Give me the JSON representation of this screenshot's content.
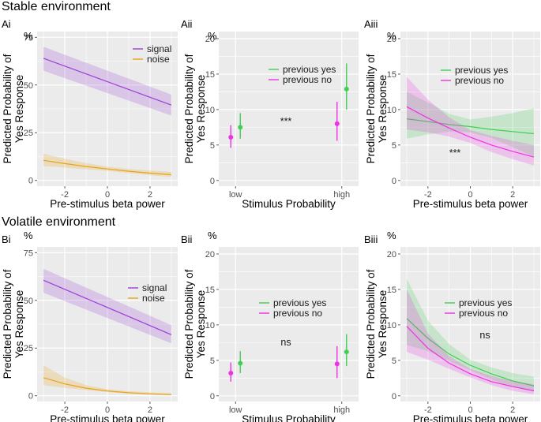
{
  "section_titles": {
    "stable": "Stable environment",
    "volatile": "Volatile environment"
  },
  "percent_sign": "%",
  "colors": {
    "signal": "#9b3fd6",
    "noise": "#e8a317",
    "previous_yes": "#3fcf52",
    "previous_no": "#ee32e3",
    "panel_bg": "#ebebeb",
    "grid": "#ffffff"
  },
  "chart_data": [
    {
      "id": "Ai",
      "label": "Ai",
      "type": "line",
      "section": "stable",
      "xlabel": "Pre-stimulus beta power",
      "ylabel_lines": [
        "Predicted Probability of",
        "Yes Response"
      ],
      "xlim": [
        -3.3,
        3.3
      ],
      "ylim": [
        -3,
        78
      ],
      "xticks": [
        -2,
        0,
        2
      ],
      "xtick_labels": [
        "-2",
        "0",
        "2"
      ],
      "yticks": [
        0,
        25,
        50,
        75
      ],
      "ytick_labels": [
        "0",
        "25",
        "50",
        "75"
      ],
      "legend": [
        "signal",
        "noise"
      ],
      "series": [
        {
          "name": "signal",
          "color": "#9b3fd6",
          "x": [
            -3,
            3
          ],
          "y": [
            64,
            39.5
          ],
          "lower": [
            57.5,
            34
          ],
          "upper": [
            70,
            45
          ]
        },
        {
          "name": "noise",
          "color": "#e8a317",
          "x": [
            -3,
            -2,
            -1,
            0,
            1,
            2,
            3
          ],
          "y": [
            10.5,
            8.8,
            7.3,
            6,
            4.8,
            3.8,
            3
          ],
          "lower": [
            7.5,
            6.7,
            5.8,
            5,
            3.8,
            2.8,
            1.8
          ],
          "upper": [
            14,
            11.3,
            9.1,
            7.2,
            6,
            5.2,
            4.5
          ]
        }
      ]
    },
    {
      "id": "Aii",
      "label": "Aii",
      "type": "scatter",
      "section": "stable",
      "xlabel": "Stimulus Probability",
      "ylabel_lines": [
        "Predicted Probability of",
        "Yes Response"
      ],
      "categories": [
        "low",
        "high"
      ],
      "ylim": [
        -0.8,
        21
      ],
      "yticks": [
        0,
        5,
        10,
        15,
        20
      ],
      "ytick_labels": [
        "0",
        "5",
        "10",
        "15",
        "20"
      ],
      "legend": [
        "previous yes",
        "previous no"
      ],
      "annotation": "***",
      "series": [
        {
          "name": "previous yes",
          "color": "#3fcf52",
          "values": [
            7.5,
            12.9
          ],
          "lower": [
            5.9,
            10
          ],
          "upper": [
            9.5,
            16.5
          ]
        },
        {
          "name": "previous no",
          "color": "#ee32e3",
          "values": [
            6.1,
            8
          ],
          "lower": [
            4.6,
            5.6
          ],
          "upper": [
            7.8,
            11.1
          ]
        }
      ]
    },
    {
      "id": "Aiii",
      "label": "Aiii",
      "type": "line",
      "section": "stable",
      "xlabel": "Pre-stimulus beta power",
      "ylabel_lines": [
        "Predicted Probability of",
        "Yes Response"
      ],
      "xlim": [
        -3.3,
        3.3
      ],
      "ylim": [
        -0.8,
        21
      ],
      "xticks": [
        -2,
        0,
        2
      ],
      "xtick_labels": [
        "-2",
        "0",
        "2"
      ],
      "yticks": [
        0,
        5,
        10,
        15,
        20
      ],
      "ytick_labels": [
        "0",
        "5",
        "10",
        "15",
        "20"
      ],
      "legend": [
        "previous yes",
        "previous no"
      ],
      "annotation": "***",
      "series": [
        {
          "name": "previous yes",
          "color": "#3fcf52",
          "x": [
            -3,
            -2,
            -1,
            0,
            1,
            2,
            3
          ],
          "y": [
            8.7,
            8.3,
            7.9,
            7.6,
            7.2,
            6.9,
            6.6
          ],
          "lower": [
            5.9,
            6.5,
            6.9,
            6.8,
            6,
            4.7,
            3.4
          ],
          "upper": [
            12.5,
            11,
            9.4,
            8.6,
            9,
            9.5,
            10.2
          ]
        },
        {
          "name": "previous no",
          "color": "#ee32e3",
          "x": [
            -3,
            -2,
            -1,
            0,
            1,
            2,
            3
          ],
          "y": [
            10.4,
            8.8,
            7.4,
            6.1,
            5,
            4.1,
            3.3
          ],
          "lower": [
            7.2,
            6.8,
            6.2,
            5.3,
            4,
            3,
            2.1
          ],
          "upper": [
            14.6,
            11.4,
            8.9,
            7.1,
            6.3,
            5.6,
            5
          ]
        }
      ]
    },
    {
      "id": "Bi",
      "label": "Bi",
      "type": "line",
      "section": "volatile",
      "xlabel": "Pre-stimulus beta power",
      "ylabel_lines": [
        "Predicted Probability of",
        "Yes Response"
      ],
      "xlim": [
        -3.3,
        3.3
      ],
      "ylim": [
        -3,
        78
      ],
      "xticks": [
        -2,
        0,
        2
      ],
      "xtick_labels": [
        "-2",
        "0",
        "2"
      ],
      "yticks": [
        0,
        25,
        50,
        75
      ],
      "ytick_labels": [
        "0",
        "25",
        "50",
        "75"
      ],
      "legend": [
        "signal",
        "noise"
      ],
      "series": [
        {
          "name": "signal",
          "color": "#9b3fd6",
          "x": [
            -3,
            3
          ],
          "y": [
            60.5,
            32
          ],
          "lower": [
            54,
            27.5
          ],
          "upper": [
            66.5,
            37
          ]
        },
        {
          "name": "noise",
          "color": "#e8a317",
          "x": [
            -3,
            -2,
            -1,
            0,
            1,
            2,
            3
          ],
          "y": [
            9.5,
            6.2,
            4,
            2.5,
            1.6,
            1,
            0.6
          ],
          "lower": [
            5.5,
            4.2,
            3,
            1.9,
            1,
            0.5,
            0.2
          ],
          "upper": [
            16,
            9.5,
            5.6,
            3.4,
            2.4,
            1.8,
            1.4
          ]
        }
      ]
    },
    {
      "id": "Bii",
      "label": "Bii",
      "type": "scatter",
      "section": "volatile",
      "xlabel": "Stimulus Probability",
      "ylabel_lines": [
        "Predicted Probability of",
        "Yes Response"
      ],
      "categories": [
        "low",
        "high"
      ],
      "ylim": [
        -0.8,
        21
      ],
      "yticks": [
        0,
        5,
        10,
        15,
        20
      ],
      "ytick_labels": [
        "0",
        "5",
        "10",
        "15",
        "20"
      ],
      "legend": [
        "previous yes",
        "previous no"
      ],
      "annotation": "ns",
      "series": [
        {
          "name": "previous yes",
          "color": "#3fcf52",
          "values": [
            4.6,
            6.2
          ],
          "lower": [
            3.2,
            4.2
          ],
          "upper": [
            6.3,
            8.7
          ]
        },
        {
          "name": "previous no",
          "color": "#ee32e3",
          "values": [
            3.2,
            4.5
          ],
          "lower": [
            2,
            2.5
          ],
          "upper": [
            4.7,
            7
          ]
        }
      ]
    },
    {
      "id": "Biii",
      "label": "Biii",
      "type": "line",
      "section": "volatile",
      "xlabel": "Pre-stimulus beta power",
      "ylabel_lines": [
        "Predicted Probability of",
        "Yes Response"
      ],
      "xlim": [
        -3.3,
        3.3
      ],
      "ylim": [
        -0.8,
        21
      ],
      "xticks": [
        -2,
        0,
        2
      ],
      "xtick_labels": [
        "-2",
        "0",
        "2"
      ],
      "yticks": [
        0,
        5,
        10,
        15,
        20
      ],
      "ytick_labels": [
        "0",
        "5",
        "10",
        "15",
        "20"
      ],
      "legend": [
        "previous yes",
        "previous no"
      ],
      "annotation": "ns",
      "series": [
        {
          "name": "previous yes",
          "color": "#3fcf52",
          "x": [
            -3,
            -2,
            -1,
            0,
            1,
            2,
            3
          ],
          "y": [
            10.9,
            8.1,
            5.9,
            4.3,
            3.1,
            2.1,
            1.4
          ],
          "lower": [
            7.2,
            6.3,
            4.9,
            3.6,
            2.3,
            1.3,
            0.6
          ],
          "upper": [
            16.5,
            10.6,
            7.3,
            5.1,
            4,
            3.2,
            2.7
          ]
        },
        {
          "name": "previous no",
          "color": "#ee32e3",
          "x": [
            -3,
            -2,
            -1,
            0,
            1,
            2,
            3
          ],
          "y": [
            9.8,
            6.7,
            4.6,
            3.1,
            2,
            1.3,
            0.7
          ],
          "lower": [
            6.2,
            5.1,
            3.8,
            2.6,
            1.5,
            0.7,
            0.2
          ],
          "upper": [
            15,
            8.8,
            5.6,
            3.8,
            2.8,
            2.1,
            1.6
          ]
        }
      ]
    }
  ]
}
